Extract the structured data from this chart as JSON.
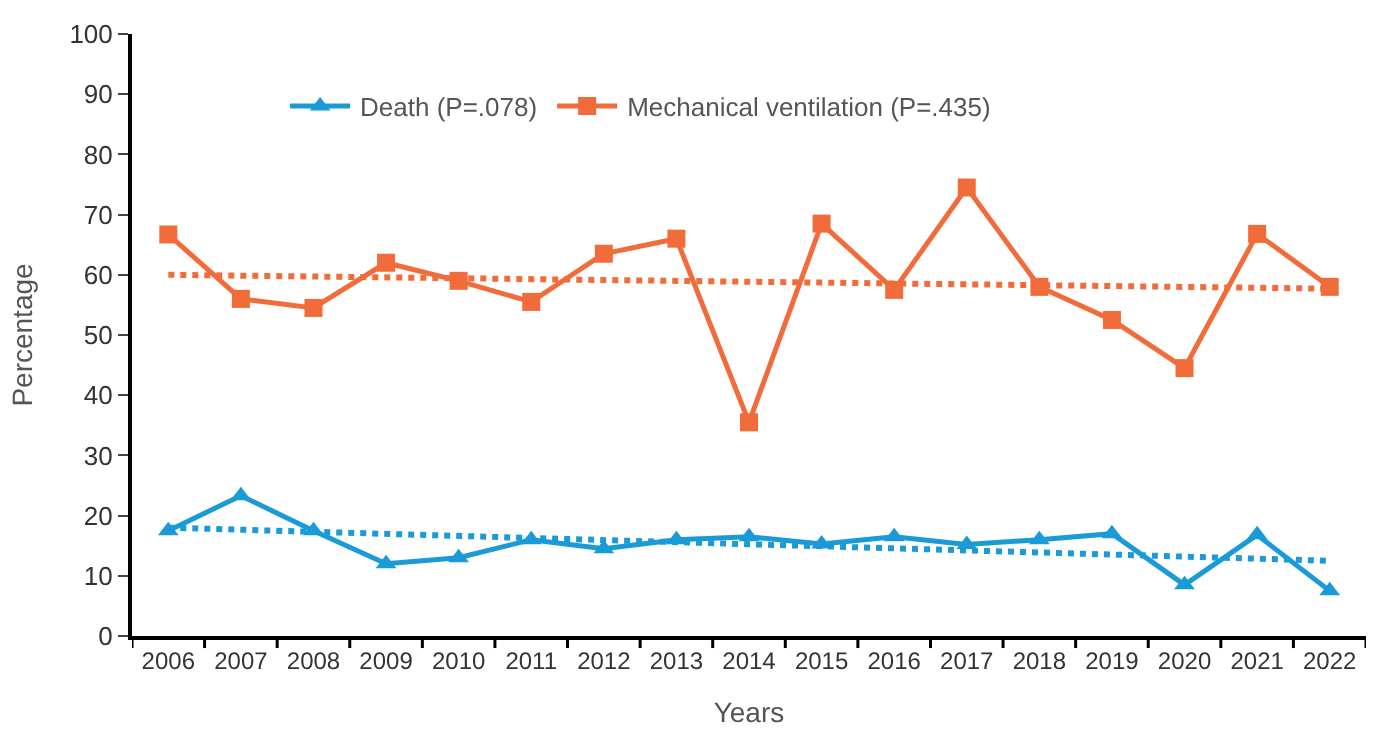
{
  "chart_data": {
    "type": "line",
    "xlabel": "Years",
    "ylabel": "Percentage",
    "categories": [
      "2006",
      "2007",
      "2008",
      "2009",
      "2010",
      "2011",
      "2012",
      "2013",
      "2014",
      "2015",
      "2016",
      "2017",
      "2018",
      "2019",
      "2020",
      "2021",
      "2022"
    ],
    "series": [
      {
        "name": "Death (P=.078)",
        "color": "#1a9bd7",
        "marker": "triangle",
        "line_style": "solid",
        "values": [
          17.5,
          23.3,
          17.5,
          12,
          13,
          16,
          14.5,
          16,
          16.5,
          15.3,
          16.5,
          15.2,
          16,
          17,
          8.5,
          16.8,
          7.5
        ]
      },
      {
        "name": "Mechanical ventilation (P=.435)",
        "color": "#f26b3a",
        "marker": "square",
        "line_style": "solid",
        "values": [
          66.7,
          56,
          54.5,
          62,
          59,
          55.5,
          63.5,
          66,
          35.5,
          68.5,
          57.5,
          74.5,
          58,
          52.5,
          44.5,
          66.8,
          58
        ]
      },
      {
        "color": "#1a9bd7",
        "marker": "none",
        "line_style": "dotted",
        "values": [
          18,
          null,
          null,
          null,
          null,
          null,
          null,
          null,
          null,
          null,
          null,
          null,
          null,
          null,
          null,
          null,
          12.5
        ]
      },
      {
        "color": "#f26b3a",
        "marker": "none",
        "line_style": "dotted",
        "values": [
          60,
          null,
          null,
          null,
          null,
          null,
          null,
          null,
          null,
          null,
          null,
          null,
          null,
          null,
          null,
          null,
          57.7
        ]
      }
    ],
    "ylim": [
      0,
      100
    ],
    "yticks": [
      0,
      10,
      20,
      30,
      40,
      50,
      60,
      70,
      80,
      90,
      100
    ],
    "legend": "top"
  }
}
